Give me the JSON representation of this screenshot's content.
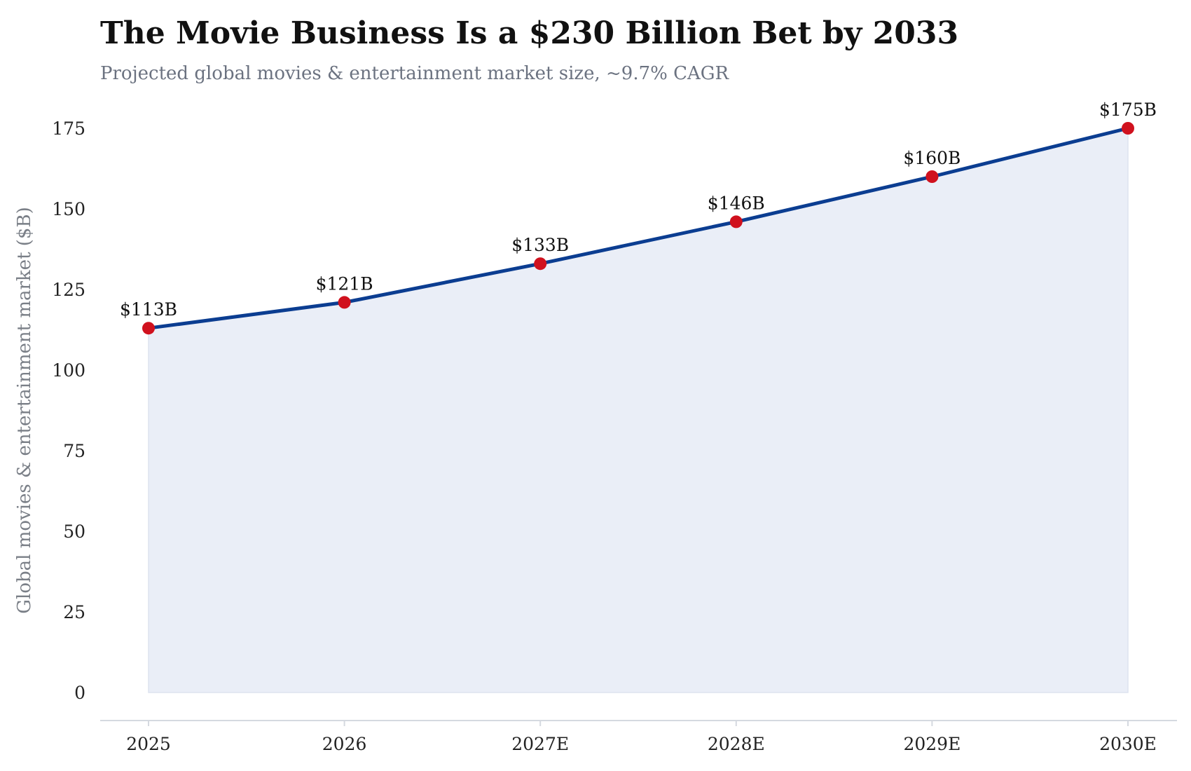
{
  "title": "The Movie Business Is a $230 Billion Bet by 2033",
  "subtitle": "Projected global movies & entertainment market size, ~9.7% CAGR",
  "colors": {
    "line": "#0b3d91",
    "marker": "#d0111e",
    "area": "#eaeef7",
    "axis": "#d5d9e0"
  },
  "chart_data": {
    "type": "area",
    "categories": [
      "2025",
      "2026",
      "2027E",
      "2028E",
      "2029E",
      "2030E"
    ],
    "values": [
      113,
      121,
      133,
      146,
      160,
      175
    ],
    "data_labels": [
      "$113B",
      "$121B",
      "$133B",
      "$146B",
      "$160B",
      "$175B"
    ],
    "ylabel": "Global movies & entertainment market ($B)",
    "xlabel": "",
    "yticks": [
      0,
      25,
      50,
      75,
      100,
      125,
      150,
      175
    ],
    "ylim": [
      -8.5,
      183
    ],
    "grid": false,
    "markers": true
  }
}
